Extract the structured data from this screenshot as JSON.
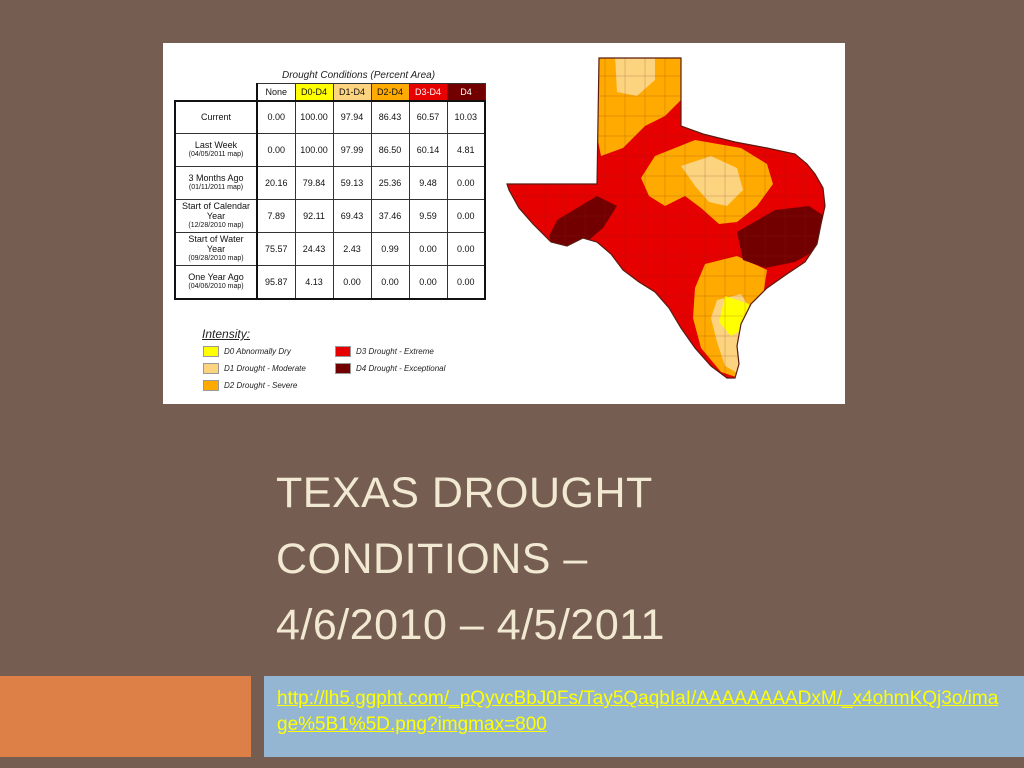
{
  "figure": {
    "table": {
      "title": "Drought Conditions (Percent Area)",
      "columns": [
        {
          "label": "None",
          "color": "#ffffff",
          "text": "#111111"
        },
        {
          "label": "D0-D4",
          "color": "#ffff00",
          "text": "#111111"
        },
        {
          "label": "D1-D4",
          "color": "#fcd37f",
          "text": "#111111"
        },
        {
          "label": "D2-D4",
          "color": "#ffaa00",
          "text": "#111111"
        },
        {
          "label": "D3-D4",
          "color": "#e60000",
          "text": "#ffffff"
        },
        {
          "label": "D4",
          "color": "#730000",
          "text": "#ffffff"
        }
      ],
      "rows": [
        {
          "label": "Current",
          "sub": "",
          "values": [
            "0.00",
            "100.00",
            "97.94",
            "86.43",
            "60.57",
            "10.03"
          ]
        },
        {
          "label": "Last Week",
          "sub": "(04/05/2011 map)",
          "values": [
            "0.00",
            "100.00",
            "97.99",
            "86.50",
            "60.14",
            "4.81"
          ]
        },
        {
          "label": "3 Months Ago",
          "sub": "(01/11/2011 map)",
          "values": [
            "20.16",
            "79.84",
            "59.13",
            "25.36",
            "9.48",
            "0.00"
          ]
        },
        {
          "label": "Start of Calendar Year",
          "sub": "(12/28/2010 map)",
          "values": [
            "7.89",
            "92.11",
            "69.43",
            "37.46",
            "9.59",
            "0.00"
          ]
        },
        {
          "label": "Start of Water Year",
          "sub": "(09/28/2010 map)",
          "values": [
            "75.57",
            "24.43",
            "2.43",
            "0.99",
            "0.00",
            "0.00"
          ]
        },
        {
          "label": "One Year Ago",
          "sub": "(04/06/2010 map)",
          "values": [
            "95.87",
            "4.13",
            "0.00",
            "0.00",
            "0.00",
            "0.00"
          ]
        }
      ]
    },
    "legend": {
      "title": "Intensity:",
      "items": [
        {
          "label": "D0 Abnormally Dry",
          "color": "#ffff00"
        },
        {
          "label": "D1 Drought - Moderate",
          "color": "#fcd37f"
        },
        {
          "label": "D2 Drought - Severe",
          "color": "#ffaa00"
        },
        {
          "label": "D3 Drought - Extreme",
          "color": "#e60000"
        },
        {
          "label": "D4 Drought - Exceptional",
          "color": "#730000"
        }
      ]
    },
    "map_colors": {
      "d0": "#ffff00",
      "d1": "#fcd37f",
      "d2": "#ffaa00",
      "d3": "#e60000",
      "d4": "#730000"
    }
  },
  "slide": {
    "title_lines": [
      "TEXAS DROUGHT",
      "CONDITIONS –",
      "4/6/2010 – 4/5/2011"
    ],
    "source_link": "http://lh5.ggpht.com/_pQyvcBbJ0Fs/Tay5QaqbIaI/AAAAAAAADxM/_x4ohmKQj3o/image%5B1%5D.png?imgmax=800"
  },
  "theme": {
    "background": "#765d51",
    "title_color": "#f1e9d2",
    "accent_orange": "#dd8047",
    "accent_blue": "#94b6d2",
    "link_color": "#ffff00"
  }
}
